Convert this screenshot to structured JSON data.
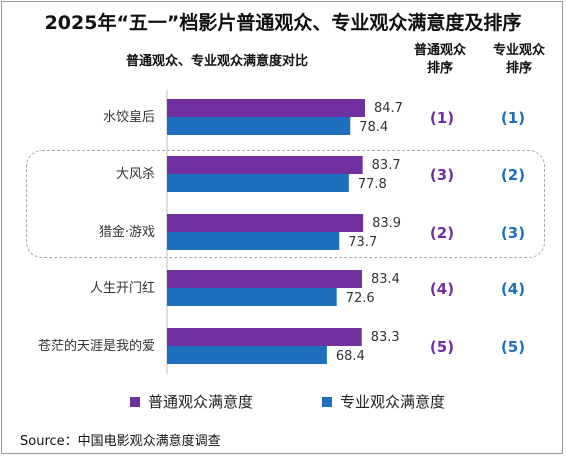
{
  "colors": {
    "public": "#7030a0",
    "professional": "#1f6fbf",
    "rank_public": "#7030a0",
    "rank_professional": "#1f6fbf"
  },
  "chart_data": {
    "type": "bar",
    "orientation": "horizontal",
    "title": "2025年“五一”档影片普通观众、专业观众满意度及排序",
    "subtitle": "普通观众、专业观众满意度对比",
    "categories": [
      "水饺皇后",
      "大风杀",
      "猎金·游戏",
      "人生开门红",
      "苍茫的天涯是我的爱"
    ],
    "series": [
      {
        "name": "普通观众满意度",
        "values": [
          84.7,
          83.7,
          83.9,
          83.4,
          83.3
        ]
      },
      {
        "name": "专业观众满意度",
        "values": [
          78.4,
          77.8,
          73.7,
          72.6,
          68.4
        ]
      }
    ],
    "rank_headers": [
      "普通观众排序",
      "专业观众排序"
    ],
    "rank_header_lines": [
      [
        "普通观众",
        "排序"
      ],
      [
        "专业观众",
        "排序"
      ]
    ],
    "rank_public": [
      "(1)",
      "(3)",
      "(2)",
      "(4)",
      "(5)"
    ],
    "rank_professional": [
      "(1)",
      "(2)",
      "(3)",
      "(4)",
      "(5)"
    ],
    "legend": [
      "普通观众满意度",
      "专业观众满意度"
    ],
    "legend_position": "bottom",
    "grid": false
  },
  "source": "Source：中国电影观众满意度调查"
}
